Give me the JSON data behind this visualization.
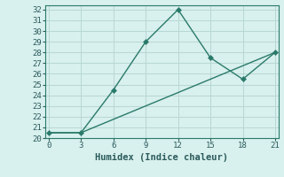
{
  "line1_x": [
    0,
    3,
    6,
    9,
    12,
    15,
    18,
    21
  ],
  "line1_y": [
    20.5,
    20.5,
    24.5,
    29,
    32,
    27.5,
    25.5,
    28
  ],
  "line2_x": [
    0,
    3,
    21
  ],
  "line2_y": [
    20.5,
    20.5,
    28
  ],
  "line_color": "#2a7a6a",
  "bg_color": "#d8f0ee",
  "grid_color": "#b8d8d4",
  "spine_color": "#2a7a6a",
  "xlabel": "Humidex (Indice chaleur)",
  "xlim": [
    -0.3,
    21.3
  ],
  "ylim": [
    20,
    32.4
  ],
  "xticks": [
    0,
    3,
    6,
    9,
    12,
    15,
    18,
    21
  ],
  "yticks": [
    20,
    21,
    22,
    23,
    24,
    25,
    26,
    27,
    28,
    29,
    30,
    31,
    32
  ],
  "font_color": "#2a5a5a",
  "marker": "D",
  "markersize": 3,
  "linewidth": 1.0,
  "tick_fontsize": 6.5,
  "xlabel_fontsize": 7.5
}
